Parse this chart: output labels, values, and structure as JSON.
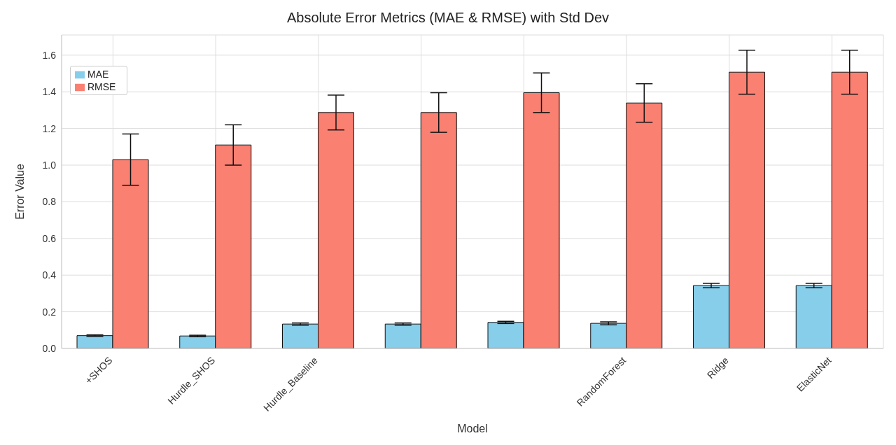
{
  "chart_data": {
    "type": "bar",
    "title": "Absolute Error Metrics (MAE & RMSE) with Std Dev",
    "xlabel": "Model",
    "ylabel": "Error Value",
    "categories": [
      "+SHOS",
      "Hurdle_SHOS",
      "Hurdle_Baseline",
      null,
      null,
      "RandomForest",
      "Ridge",
      "ElasticNet"
    ],
    "series": [
      {
        "name": "MAE",
        "color": "#87ceeb",
        "values": [
          0.07,
          0.068,
          0.133,
          0.133,
          0.142,
          0.137,
          0.343,
          0.343
        ],
        "errors": [
          0.004,
          0.004,
          0.006,
          0.006,
          0.006,
          0.008,
          0.012,
          0.012
        ]
      },
      {
        "name": "RMSE",
        "color": "#fa8072",
        "values": [
          1.03,
          1.11,
          1.287,
          1.287,
          1.395,
          1.339,
          1.507,
          1.507
        ],
        "errors": [
          0.14,
          0.11,
          0.095,
          0.108,
          0.108,
          0.105,
          0.12,
          0.12
        ]
      }
    ],
    "ylim": [
      0,
      1.71
    ],
    "yticks": [
      {
        "value": 0,
        "label": "0.0"
      },
      0.2,
      0.4,
      0.6,
      0.8,
      {
        "value": 1,
        "label": "1.0"
      },
      1.2,
      1.4,
      1.6
    ],
    "grid": true,
    "legend": "top left"
  }
}
